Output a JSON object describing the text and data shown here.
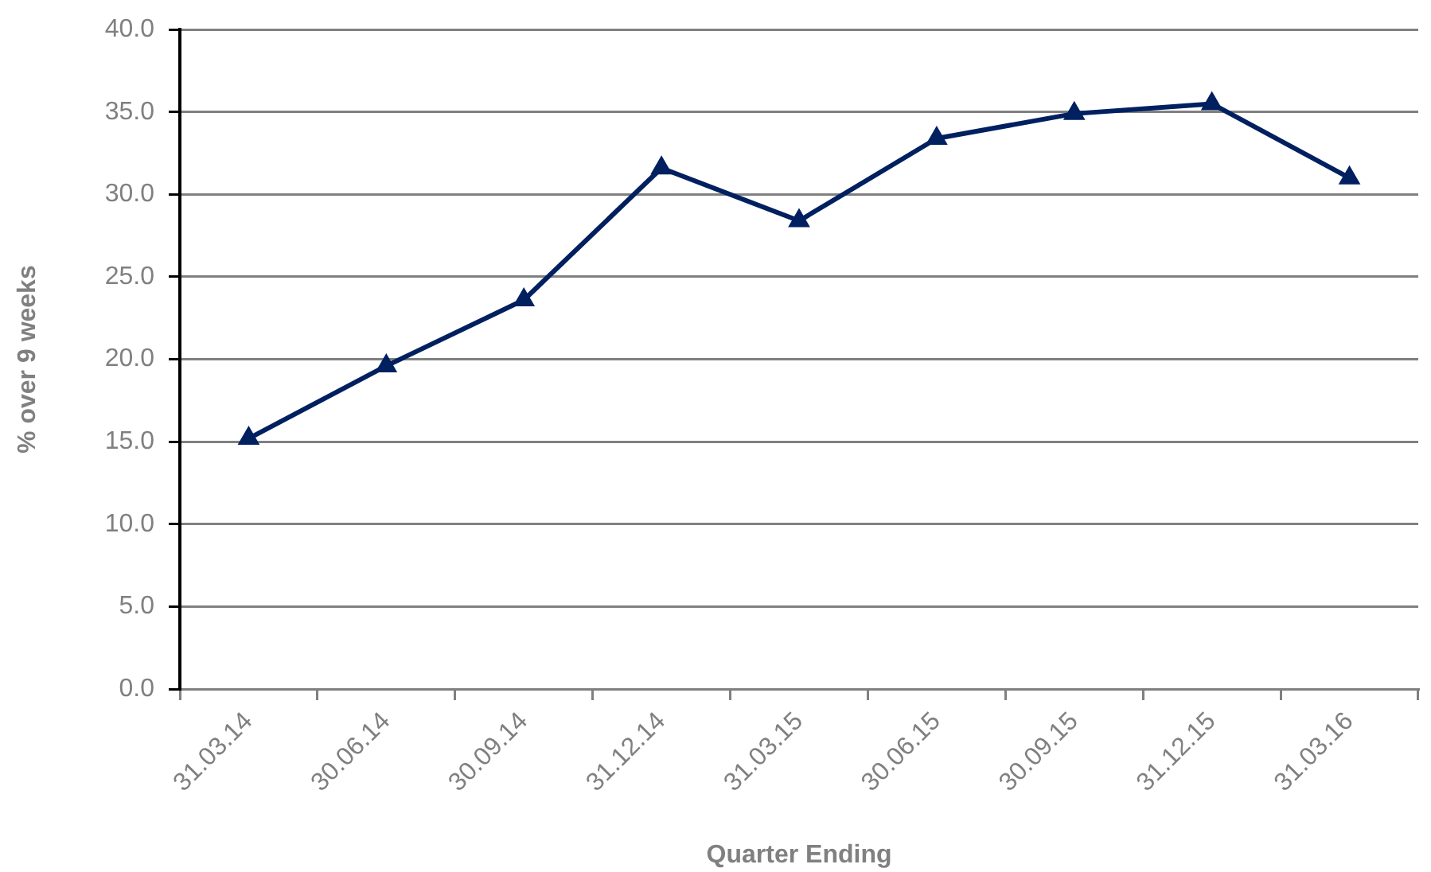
{
  "chart_data": {
    "type": "line",
    "xlabel": "Quarter Ending",
    "ylabel": "% over 9 weeks",
    "categories": [
      "31.03.14",
      "30.06.14",
      "30.09.14",
      "31.12.14",
      "31.03.15",
      "30.06.15",
      "30.09.15",
      "31.12.15",
      "31.03.16"
    ],
    "series": [
      {
        "color": "#002060",
        "values": [
          15.2,
          19.6,
          23.6,
          31.6,
          28.4,
          33.4,
          34.9,
          35.5,
          31.0
        ]
      }
    ],
    "ylim": [
      0,
      40
    ],
    "yticks": [
      {
        "value": 0,
        "label": "0.0"
      },
      {
        "value": 5,
        "label": "5.0"
      },
      {
        "value": 10,
        "label": "10.0"
      },
      {
        "value": 15,
        "label": "15.0"
      },
      {
        "value": 20,
        "label": "20.0"
      },
      {
        "value": 25,
        "label": "25.0"
      },
      {
        "value": 30,
        "label": "30.0"
      },
      {
        "value": 35,
        "label": "35.0"
      },
      {
        "value": 40,
        "label": "40.0"
      }
    ],
    "grid": "y",
    "marker": "triangle",
    "line_style": "solid"
  }
}
